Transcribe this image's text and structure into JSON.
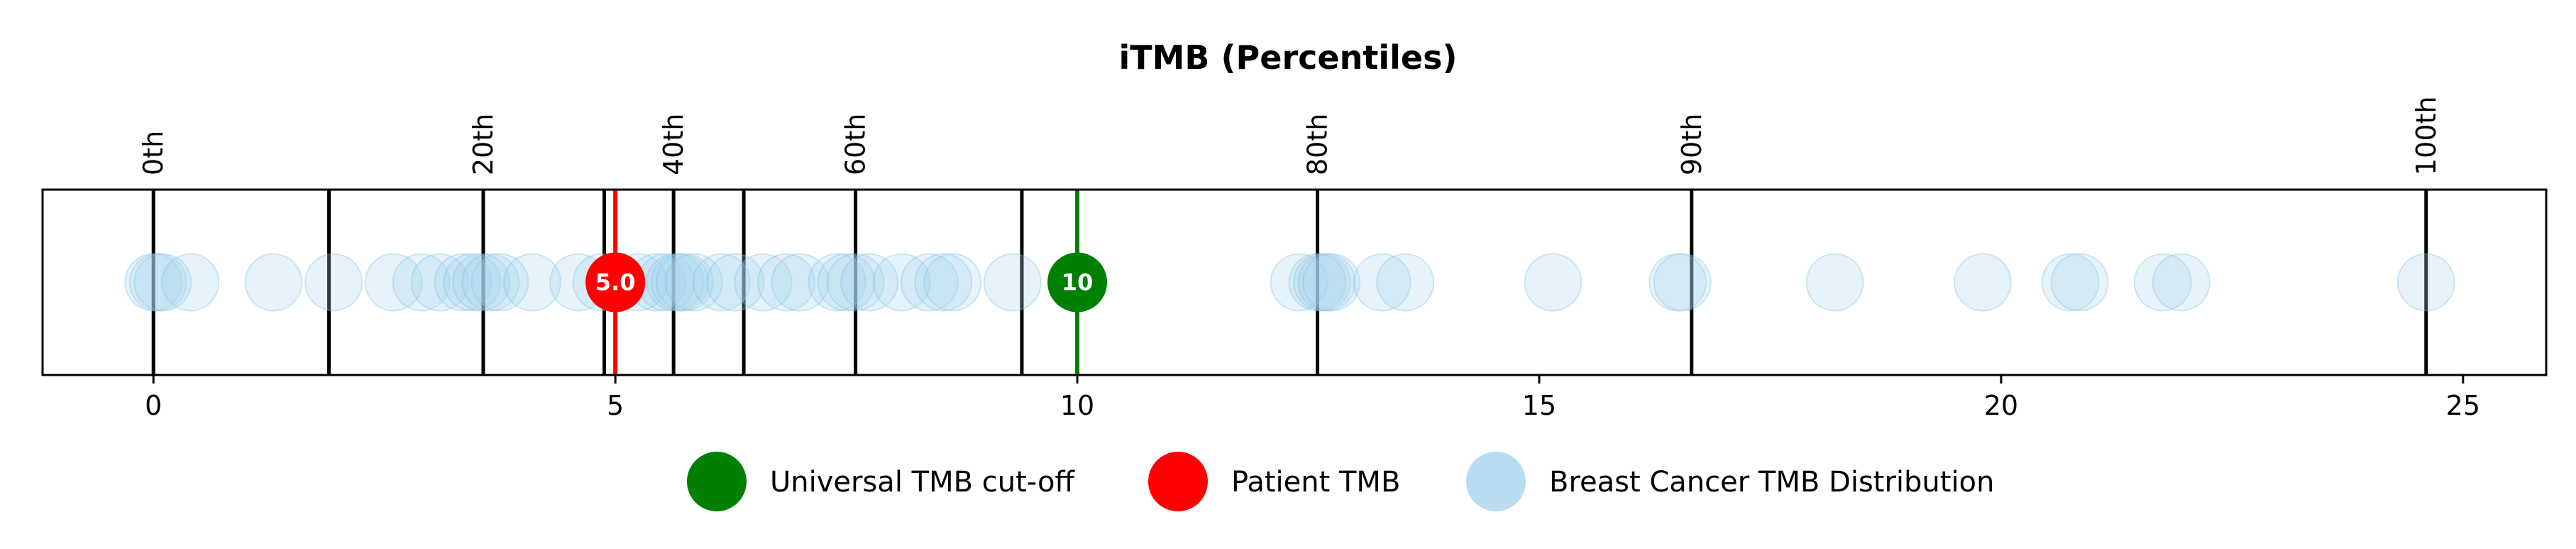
{
  "chart_data": {
    "type": "scatter",
    "title": "iTMB (Percentiles)",
    "xlim": [
      -1.2,
      25.9
    ],
    "x_ticks": [
      0,
      5,
      10,
      15,
      20,
      25
    ],
    "x_tick_labels": [
      "0",
      "5",
      "10",
      "15",
      "20",
      "25"
    ],
    "grid": false,
    "percentile_lines": [
      0,
      1.9,
      3.57,
      4.88,
      5.63,
      6.39,
      7.6,
      9.4,
      12.6,
      16.65,
      24.6
    ],
    "percentile_labels": [
      {
        "label": "0th",
        "x": 0
      },
      {
        "label": "20th",
        "x": 3.57
      },
      {
        "label": "40th",
        "x": 5.63
      },
      {
        "label": "60th",
        "x": 7.6
      },
      {
        "label": "80th",
        "x": 12.6
      },
      {
        "label": "90th",
        "x": 16.65
      },
      {
        "label": "100th",
        "x": 24.6
      }
    ],
    "series": [
      {
        "name": "Breast Cancer TMB Distribution",
        "color": "#a6d4ec",
        "x": [
          0,
          0.05,
          0.1,
          0.4,
          1.3,
          1.95,
          2.6,
          2.9,
          3.1,
          3.35,
          3.45,
          3.55,
          3.65,
          3.75,
          4.1,
          4.6,
          4.85,
          5.25,
          5.45,
          5.55,
          5.65,
          5.7,
          5.75,
          5.85,
          6.15,
          6.3,
          6.6,
          6.85,
          7.0,
          7.4,
          7.5,
          7.6,
          7.75,
          8.1,
          8.4,
          8.55,
          8.65,
          9.3,
          12.4,
          12.6,
          12.65,
          12.7,
          12.75,
          13.3,
          13.55,
          15.15,
          16.5,
          16.55,
          18.2,
          19.8,
          20.75,
          20.85,
          21.75,
          21.95,
          24.6
        ]
      },
      {
        "name": "Patient TMB",
        "color": "#ff0000",
        "x": [
          5.0
        ],
        "label": "5.0"
      },
      {
        "name": "Universal TMB cut-off",
        "color": "#008000",
        "x": [
          10
        ],
        "label": "10"
      }
    ],
    "legend": {
      "placement": "bottom-center",
      "entries": [
        {
          "name": "Universal TMB cut-off",
          "color": "#008000"
        },
        {
          "name": "Patient TMB",
          "color": "#ff0000"
        },
        {
          "name": "Breast Cancer TMB Distribution",
          "color": "#a6d4ec"
        }
      ]
    }
  }
}
